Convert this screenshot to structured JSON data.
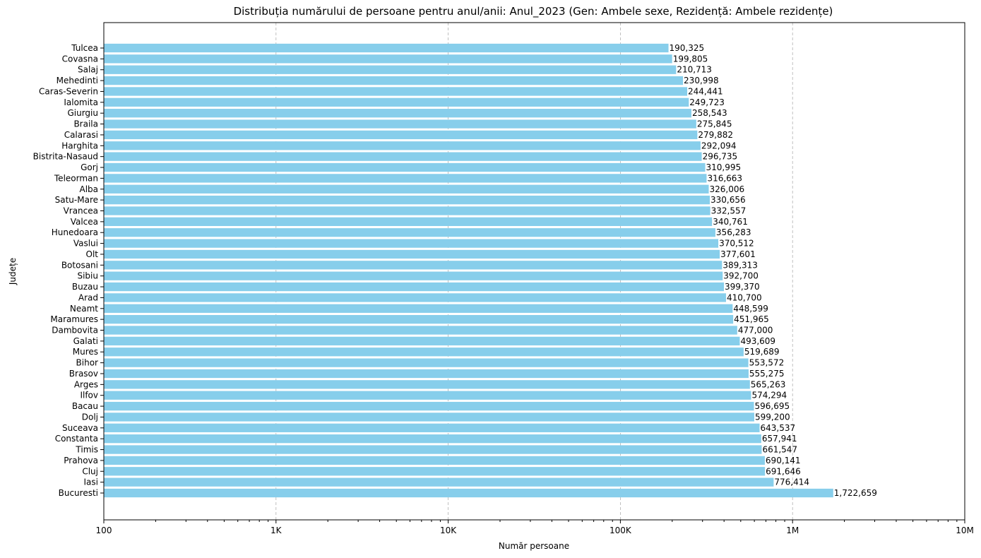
{
  "chart_data": {
    "type": "bar",
    "orientation": "horizontal",
    "title": "Distribuția numărului de persoane pentru anul/anii: Anul_2023 (Gen: Ambele sexe, Rezidență: Ambele rezidențe)",
    "xlabel": "Număr persoane",
    "ylabel": "Județe",
    "xscale": "log",
    "xlim": [
      100,
      10000000
    ],
    "x_ticks": [
      100,
      1000,
      10000,
      100000,
      1000000,
      10000000
    ],
    "x_tick_labels": [
      "100",
      "1K",
      "10K",
      "100K",
      "1M",
      "10M"
    ],
    "grid": "vertical dashed",
    "bar_color": "#87CEEB",
    "categories": [
      "Tulcea",
      "Covasna",
      "Salaj",
      "Mehedinti",
      "Caras-Severin",
      "Ialomita",
      "Giurgiu",
      "Braila",
      "Calarasi",
      "Harghita",
      "Bistrita-Nasaud",
      "Gorj",
      "Teleorman",
      "Alba",
      "Satu-Mare",
      "Vrancea",
      "Valcea",
      "Hunedoara",
      "Vaslui",
      "Olt",
      "Botosani",
      "Sibiu",
      "Buzau",
      "Arad",
      "Neamt",
      "Maramures",
      "Dambovita",
      "Galati",
      "Mures",
      "Bihor",
      "Brasov",
      "Arges",
      "Ilfov",
      "Bacau",
      "Dolj",
      "Suceava",
      "Constanta",
      "Timis",
      "Prahova",
      "Cluj",
      "Iasi",
      "Bucuresti"
    ],
    "values": [
      190325,
      199805,
      210713,
      230998,
      244441,
      249723,
      258543,
      275845,
      279882,
      292094,
      296735,
      310995,
      316663,
      326006,
      330656,
      332557,
      340761,
      356283,
      370512,
      377601,
      389313,
      392700,
      399370,
      410700,
      448599,
      451965,
      477000,
      493609,
      519689,
      553572,
      555275,
      565263,
      574294,
      596695,
      599200,
      643537,
      657941,
      661547,
      690141,
      691646,
      776414,
      1722659
    ],
    "value_labels": [
      "190,325",
      "199,805",
      "210,713",
      "230,998",
      "244,441",
      "249,723",
      "258,543",
      "275,845",
      "279,882",
      "292,094",
      "296,735",
      "310,995",
      "316,663",
      "326,006",
      "330,656",
      "332,557",
      "340,761",
      "356,283",
      "370,512",
      "377,601",
      "389,313",
      "392,700",
      "399,370",
      "410,700",
      "448,599",
      "451,965",
      "477,000",
      "493,609",
      "519,689",
      "553,572",
      "555,275",
      "565,263",
      "574,294",
      "596,695",
      "599,200",
      "643,537",
      "657,941",
      "661,547",
      "690,141",
      "691,646",
      "776,414",
      "1,722,659"
    ]
  }
}
